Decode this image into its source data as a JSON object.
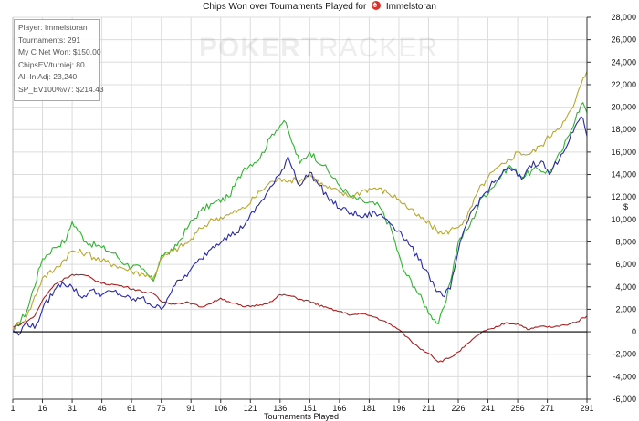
{
  "title": {
    "prefix": "Chips Won over Tournaments Played for",
    "player": "Immelstoran"
  },
  "stats_box": [
    "Player: Immelstoran",
    "Tournaments: 291",
    "My C Net Won: $150.00",
    "ChipsEV/turniej: 80",
    "All-In Adj: 23,240",
    "SP_EV100%v7: $214.43"
  ],
  "watermark": {
    "bold": "POKER",
    "thin": "TRACKER"
  },
  "colors": {
    "green": "#2db62d",
    "olive": "#b8a830",
    "blue": "#2a2aa8",
    "red": "#a82222",
    "grid": "#dcdcdc",
    "zero": "#000000"
  },
  "chart_data": {
    "type": "line",
    "xlabel": "Tournaments Played",
    "ylabel": "$",
    "xlim": [
      1,
      291
    ],
    "ylim": [
      -6000,
      28000
    ],
    "x_ticks": [
      1,
      16,
      31,
      46,
      61,
      76,
      91,
      106,
      121,
      136,
      151,
      166,
      181,
      196,
      211,
      226,
      241,
      256,
      271,
      291
    ],
    "y_ticks": [
      -6000,
      -4000,
      -2000,
      0,
      2000,
      4000,
      6000,
      8000,
      10000,
      12000,
      14000,
      16000,
      18000,
      20000,
      22000,
      24000,
      26000,
      28000
    ],
    "y_tick_labels": [
      "-6,000",
      "-4,000",
      "-2,000",
      "0",
      "2,000",
      "4,000",
      "6,000",
      "8,000",
      "10,000",
      "12,000",
      "14,000",
      "16,000",
      "18,000",
      "20,000",
      "22,000",
      "24,000",
      "26,000",
      "28,000"
    ],
    "grid": true,
    "axis_side": "right",
    "series": [
      {
        "color_key": "green",
        "x": [
          1,
          8,
          16,
          22,
          28,
          31,
          38,
          46,
          52,
          58,
          66,
          72,
          76,
          82,
          90,
          96,
          102,
          110,
          118,
          126,
          132,
          138,
          141,
          146,
          151,
          158,
          166,
          172,
          178,
          186,
          192,
          198,
          204,
          212,
          216,
          220,
          226,
          232,
          238,
          242,
          248,
          252,
          258,
          266,
          272,
          278,
          282,
          286,
          289,
          291
        ],
        "y": [
          0,
          1800,
          6500,
          7500,
          8200,
          9800,
          8000,
          7500,
          7000,
          6000,
          5600,
          4500,
          6800,
          7200,
          9500,
          10800,
          11400,
          12000,
          14600,
          15500,
          17600,
          18800,
          17400,
          15000,
          16000,
          14800,
          13000,
          12000,
          11600,
          11200,
          9200,
          5600,
          4000,
          1500,
          700,
          2800,
          8000,
          9500,
          12000,
          12600,
          14000,
          14800,
          13800,
          14500,
          14200,
          16000,
          17500,
          19500,
          20400,
          19500
        ]
      },
      {
        "color_key": "olive",
        "x": [
          1,
          8,
          16,
          22,
          31,
          38,
          46,
          52,
          61,
          66,
          72,
          76,
          82,
          90,
          96,
          102,
          110,
          118,
          126,
          132,
          138,
          146,
          151,
          158,
          166,
          172,
          178,
          184,
          190,
          196,
          204,
          212,
          218,
          224,
          230,
          236,
          240,
          244,
          250,
          256,
          262,
          268,
          274,
          280,
          284,
          288,
          291
        ],
        "y": [
          300,
          1300,
          4800,
          5500,
          7200,
          7000,
          6300,
          6000,
          5400,
          5200,
          4800,
          6500,
          7200,
          8000,
          9200,
          10000,
          10400,
          11000,
          12500,
          13400,
          13600,
          13400,
          14000,
          13000,
          12400,
          12000,
          12600,
          12800,
          12400,
          11800,
          10500,
          9500,
          8700,
          9200,
          10000,
          12500,
          13500,
          14300,
          15000,
          16000,
          15800,
          16600,
          17800,
          18800,
          20000,
          22000,
          23200
        ]
      },
      {
        "color_key": "blue",
        "x": [
          1,
          4,
          8,
          12,
          16,
          22,
          26,
          31,
          36,
          40,
          46,
          52,
          58,
          61,
          66,
          70,
          76,
          82,
          86,
          90,
          96,
          102,
          108,
          114,
          120,
          126,
          132,
          136,
          140,
          146,
          151,
          156,
          160,
          166,
          172,
          178,
          184,
          190,
          196,
          202,
          206,
          210,
          214,
          218,
          222,
          226,
          232,
          238,
          242,
          248,
          252,
          258,
          262,
          268,
          272,
          278,
          282,
          286,
          289,
          291
        ],
        "y": [
          200,
          -300,
          900,
          300,
          2000,
          3700,
          4400,
          4000,
          3000,
          3700,
          3300,
          3600,
          3100,
          2800,
          3000,
          2500,
          2000,
          4000,
          4600,
          5300,
          6500,
          7600,
          8400,
          8800,
          10000,
          11500,
          13000,
          14000,
          15600,
          13000,
          14200,
          13000,
          12000,
          11000,
          10600,
          10200,
          10600,
          10000,
          9000,
          7600,
          6400,
          5500,
          4000,
          3200,
          3800,
          7200,
          10500,
          12000,
          12900,
          14000,
          14600,
          13600,
          14800,
          15200,
          14000,
          15800,
          17000,
          18600,
          19000,
          17400
        ]
      },
      {
        "color_key": "red",
        "x": [
          1,
          8,
          12,
          16,
          22,
          28,
          31,
          38,
          46,
          52,
          58,
          66,
          72,
          76,
          82,
          90,
          96,
          102,
          106,
          110,
          118,
          126,
          132,
          136,
          141,
          146,
          151,
          158,
          166,
          172,
          178,
          184,
          190,
          196,
          202,
          206,
          212,
          216,
          222,
          226,
          232,
          238,
          244,
          250,
          256,
          262,
          268,
          274,
          280,
          286,
          291
        ],
        "y": [
          400,
          900,
          1400,
          2800,
          4200,
          4800,
          5100,
          5000,
          4300,
          4200,
          4000,
          3600,
          3400,
          2700,
          2500,
          2600,
          2200,
          2600,
          3000,
          2700,
          2200,
          2400,
          2700,
          3300,
          3200,
          2900,
          2700,
          2200,
          1800,
          1500,
          1600,
          1300,
          800,
          200,
          -800,
          -1400,
          -2000,
          -2700,
          -2300,
          -1800,
          -900,
          0,
          300,
          800,
          700,
          200,
          500,
          400,
          600,
          900,
          1400
        ]
      }
    ]
  }
}
